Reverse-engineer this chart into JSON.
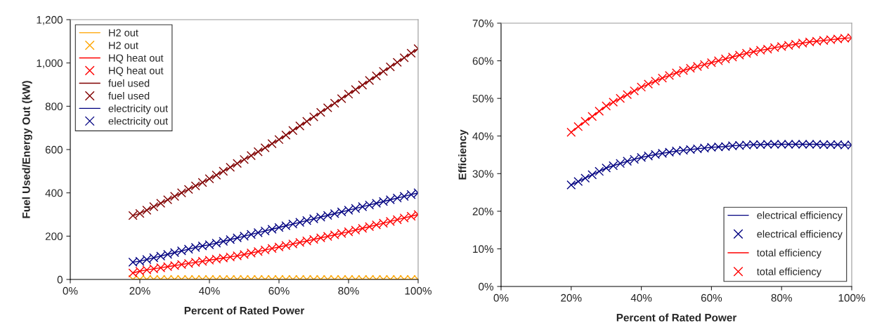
{
  "chart_data": [
    {
      "type": "line",
      "xlabel": "Percent of Rated Power",
      "ylabel": "Fuel Used/Energy Out (kW)",
      "x": [
        18,
        20,
        22,
        24,
        26,
        28,
        30,
        32,
        34,
        36,
        38,
        40,
        42,
        44,
        46,
        48,
        50,
        52,
        54,
        56,
        58,
        60,
        62,
        64,
        66,
        68,
        70,
        72,
        74,
        76,
        78,
        80,
        82,
        84,
        86,
        88,
        90,
        92,
        94,
        96,
        98,
        100
      ],
      "series": [
        {
          "name": "H2 out",
          "type": "line",
          "marker": "none",
          "color": "#ffa500",
          "values": [
            0,
            0,
            0,
            0,
            0,
            0,
            0,
            0,
            0,
            0,
            0,
            0,
            0,
            0,
            0,
            0,
            0,
            0,
            0,
            0,
            0,
            0,
            0,
            0,
            0,
            0,
            0,
            0,
            0,
            0,
            0,
            0,
            0,
            0,
            0,
            0,
            0,
            0,
            0,
            0,
            0,
            0
          ]
        },
        {
          "name": "H2 out",
          "type": "scatter",
          "marker": "cross",
          "color": "#ffa500",
          "values": [
            0,
            0,
            0,
            0,
            0,
            0,
            0,
            0,
            0,
            0,
            0,
            0,
            0,
            0,
            0,
            0,
            0,
            0,
            0,
            0,
            0,
            0,
            0,
            0,
            0,
            0,
            0,
            0,
            0,
            0,
            0,
            0,
            0,
            0,
            0,
            0,
            0,
            0,
            0,
            0,
            0,
            0
          ]
        },
        {
          "name": "HQ heat out",
          "type": "line",
          "marker": "none",
          "color": "#ff0000",
          "values": [
            30,
            38,
            44,
            49,
            54,
            59,
            64,
            69,
            74,
            79,
            84,
            89,
            94,
            99,
            104,
            109,
            115,
            122,
            129,
            136,
            143,
            150,
            157,
            164,
            171,
            178,
            185,
            192,
            199,
            206,
            213,
            220,
            228,
            236,
            244,
            252,
            260,
            268,
            276,
            284,
            292,
            300
          ]
        },
        {
          "name": "HQ heat out",
          "type": "scatter",
          "marker": "cross",
          "color": "#ff0000",
          "values": [
            30,
            38,
            44,
            49,
            54,
            59,
            64,
            69,
            74,
            79,
            84,
            89,
            94,
            99,
            104,
            109,
            115,
            122,
            129,
            136,
            143,
            150,
            157,
            164,
            171,
            178,
            185,
            192,
            199,
            206,
            213,
            220,
            228,
            236,
            244,
            252,
            260,
            268,
            276,
            284,
            292,
            300
          ]
        },
        {
          "name": "fuel used",
          "type": "line",
          "marker": "none",
          "color": "#800000",
          "values": [
            295,
            305,
            320,
            336,
            352,
            368,
            384,
            400,
            416,
            432,
            448,
            465,
            482,
            500,
            518,
            536,
            554,
            572,
            590,
            608,
            627,
            646,
            667,
            688,
            709,
            730,
            751,
            772,
            793,
            814,
            835,
            856,
            877,
            898,
            919,
            940,
            961,
            982,
            1003,
            1024,
            1045,
            1066
          ]
        },
        {
          "name": "fuel used",
          "type": "scatter",
          "marker": "cross",
          "color": "#800000",
          "values": [
            295,
            305,
            320,
            336,
            352,
            368,
            384,
            400,
            416,
            432,
            448,
            465,
            482,
            500,
            518,
            536,
            554,
            572,
            590,
            608,
            627,
            646,
            667,
            688,
            709,
            730,
            751,
            772,
            793,
            814,
            835,
            856,
            877,
            898,
            919,
            940,
            961,
            982,
            1003,
            1024,
            1045,
            1066
          ]
        },
        {
          "name": "electricity out",
          "type": "line",
          "marker": "none",
          "color": "#000080",
          "values": [
            80,
            84,
            92,
            100,
            108,
            116,
            124,
            132,
            140,
            148,
            155,
            160,
            168,
            176,
            184,
            192,
            200,
            208,
            216,
            224,
            232,
            240,
            248,
            256,
            264,
            272,
            280,
            288,
            296,
            304,
            312,
            320,
            328,
            336,
            344,
            352,
            360,
            368,
            376,
            384,
            392,
            400
          ]
        },
        {
          "name": "electricity out",
          "type": "scatter",
          "marker": "cross",
          "color": "#000080",
          "values": [
            80,
            84,
            92,
            100,
            108,
            116,
            124,
            132,
            140,
            148,
            155,
            160,
            168,
            176,
            184,
            192,
            200,
            208,
            216,
            224,
            232,
            240,
            248,
            256,
            264,
            272,
            280,
            288,
            296,
            304,
            312,
            320,
            328,
            336,
            344,
            352,
            360,
            368,
            376,
            384,
            392,
            400
          ]
        }
      ],
      "xlim": [
        0,
        100
      ],
      "xticks": [
        {
          "value": 0,
          "label": "0%"
        },
        {
          "value": 20,
          "label": "20%"
        },
        {
          "value": 40,
          "label": "40%"
        },
        {
          "value": 60,
          "label": "60%"
        },
        {
          "value": 80,
          "label": "80%"
        },
        {
          "value": 100,
          "label": "100%"
        }
      ],
      "ylim": [
        0,
        1200
      ],
      "yticks": [
        0,
        200,
        400,
        600,
        800,
        {
          "value": 1000,
          "label": "1,000"
        },
        {
          "value": 1200,
          "label": "1,200"
        }
      ],
      "grid": false,
      "legend": "top left"
    },
    {
      "type": "line",
      "xlabel": "Percent of Rated Power",
      "ylabel": "Efficiency",
      "x": [
        20,
        22,
        24,
        26,
        28,
        30,
        32,
        34,
        36,
        38,
        40,
        42,
        44,
        46,
        48,
        50,
        52,
        54,
        56,
        58,
        60,
        62,
        64,
        66,
        68,
        70,
        72,
        74,
        76,
        78,
        80,
        82,
        84,
        86,
        88,
        90,
        92,
        94,
        96,
        98,
        100
      ],
      "series": [
        {
          "name": "electrical efficiency",
          "type": "line",
          "marker": "none",
          "color": "#000080",
          "values": [
            27,
            27.9,
            28.8,
            29.7,
            30.6,
            31.5,
            32.1,
            32.7,
            33.3,
            33.8,
            34.3,
            34.7,
            35.1,
            35.4,
            35.7,
            36.0,
            36.2,
            36.4,
            36.6,
            36.8,
            37.0,
            37.1,
            37.2,
            37.4,
            37.5,
            37.6,
            37.7,
            37.7,
            37.8,
            37.8,
            37.8,
            37.8,
            37.8,
            37.8,
            37.8,
            37.8,
            37.7,
            37.7,
            37.7,
            37.6,
            37.6
          ]
        },
        {
          "name": "electrical efficiency",
          "type": "scatter",
          "marker": "cross",
          "color": "#000080",
          "values": [
            27,
            27.9,
            28.8,
            29.7,
            30.6,
            31.5,
            32.1,
            32.7,
            33.3,
            33.8,
            34.3,
            34.7,
            35.1,
            35.4,
            35.7,
            36.0,
            36.2,
            36.4,
            36.6,
            36.8,
            37.0,
            37.1,
            37.2,
            37.4,
            37.5,
            37.6,
            37.7,
            37.7,
            37.8,
            37.8,
            37.8,
            37.8,
            37.8,
            37.8,
            37.8,
            37.8,
            37.7,
            37.7,
            37.7,
            37.6,
            37.6
          ]
        },
        {
          "name": "total efficiency",
          "type": "line",
          "marker": "none",
          "color": "#ff0000",
          "values": [
            41,
            42.5,
            43.9,
            45.2,
            46.6,
            48,
            49,
            50,
            51,
            52,
            53,
            53.8,
            54.6,
            55.4,
            56.1,
            56.8,
            57.4,
            58,
            58.5,
            59,
            59.5,
            60,
            60.5,
            61,
            61.5,
            62,
            62.4,
            62.8,
            63.1,
            63.5,
            63.8,
            64.1,
            64.4,
            64.7,
            65,
            65.2,
            65.4,
            65.6,
            65.8,
            66,
            66.1
          ]
        },
        {
          "name": "total efficiency",
          "type": "scatter",
          "marker": "cross",
          "color": "#ff0000",
          "values": [
            41,
            42.5,
            43.9,
            45.2,
            46.6,
            48,
            49,
            50,
            51,
            52,
            53,
            53.8,
            54.6,
            55.4,
            56.1,
            56.8,
            57.4,
            58,
            58.5,
            59,
            59.5,
            60,
            60.5,
            61,
            61.5,
            62,
            62.4,
            62.8,
            63.1,
            63.5,
            63.8,
            64.1,
            64.4,
            64.7,
            65,
            65.2,
            65.4,
            65.6,
            65.8,
            66,
            66.1
          ]
        }
      ],
      "xlim": [
        0,
        100
      ],
      "xticks": [
        {
          "value": 0,
          "label": "0%"
        },
        {
          "value": 20,
          "label": "20%"
        },
        {
          "value": 40,
          "label": "40%"
        },
        {
          "value": 60,
          "label": "60%"
        },
        {
          "value": 80,
          "label": "80%"
        },
        {
          "value": 100,
          "label": "100%"
        }
      ],
      "ylim": [
        0,
        70
      ],
      "yticks": [
        {
          "value": 0,
          "label": "0%"
        },
        {
          "value": 10,
          "label": "10%"
        },
        {
          "value": 20,
          "label": "20%"
        },
        {
          "value": 30,
          "label": "30%"
        },
        {
          "value": 40,
          "label": "40%"
        },
        {
          "value": 50,
          "label": "50%"
        },
        {
          "value": 60,
          "label": "60%"
        },
        {
          "value": 70,
          "label": "70%"
        }
      ],
      "grid": false,
      "legend": "lower right"
    }
  ]
}
